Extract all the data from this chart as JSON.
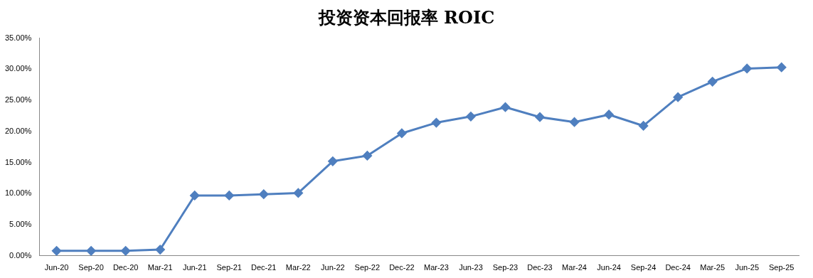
{
  "chart_data": {
    "type": "line",
    "title": "投资资本回报率 ROIC",
    "categories": [
      "Jun-20",
      "Sep-20",
      "Dec-20",
      "Mar-21",
      "Jun-21",
      "Sep-21",
      "Dec-21",
      "Mar-22",
      "Jun-22",
      "Sep-22",
      "Dec-22",
      "Mar-23",
      "Jun-23",
      "Sep-23",
      "Dec-23",
      "Mar-24",
      "Jun-24",
      "Sep-24",
      "Dec-24",
      "Mar-25",
      "Jun-25",
      "Sep-25"
    ],
    "series": [
      {
        "color": "#4f7fbf",
        "values": [
          0.8,
          0.8,
          0.8,
          1.0,
          9.7,
          9.7,
          9.9,
          10.1,
          15.2,
          16.1,
          19.7,
          21.4,
          22.4,
          23.9,
          22.3,
          21.5,
          22.7,
          20.9,
          25.5,
          28.0,
          30.1,
          30.3
        ]
      }
    ],
    "ylim": [
      0,
      35
    ],
    "yticks": [
      {
        "value": 0,
        "label": "0.00%"
      },
      {
        "value": 5,
        "label": "5.00%"
      },
      {
        "value": 10,
        "label": "10.00%"
      },
      {
        "value": 15,
        "label": "15.00%"
      },
      {
        "value": 20,
        "label": "20.00%"
      },
      {
        "value": 25,
        "label": "25.00%"
      },
      {
        "value": 30,
        "label": "30.00%"
      },
      {
        "value": 35,
        "label": "35.00%"
      }
    ],
    "grid": false,
    "legend": false,
    "marker": "diamond",
    "line_style": "solid"
  }
}
